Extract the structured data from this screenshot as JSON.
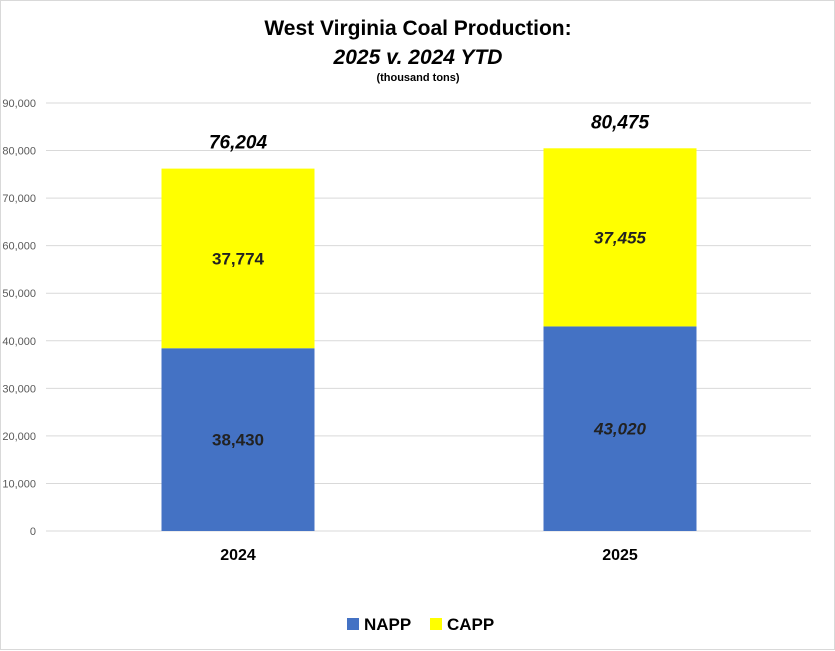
{
  "chart_data": {
    "type": "bar",
    "stacked": true,
    "title": "West Virginia Coal Production:",
    "title_line2": "2025 v. 2024 YTD",
    "subtitle": "(thousand tons)",
    "categories": [
      "2024",
      "2025"
    ],
    "series": [
      {
        "name": "NAPP",
        "values": [
          38430,
          43020
        ],
        "labels": [
          "38,430",
          "43,020"
        ],
        "color": "#4472C4",
        "label_italic": [
          false,
          true
        ]
      },
      {
        "name": "CAPP",
        "values": [
          37774,
          37455
        ],
        "labels": [
          "37,774",
          "37,455"
        ],
        "color": "#FFFF00",
        "label_italic": [
          false,
          true
        ]
      }
    ],
    "totals": [
      76204,
      80475
    ],
    "total_labels": [
      "76,204",
      "80,475"
    ],
    "ylim": [
      0,
      90000
    ],
    "yticks": [
      0,
      10000,
      20000,
      30000,
      40000,
      50000,
      60000,
      70000,
      80000,
      90000
    ],
    "ytick_labels": [
      "0",
      "10,000",
      "20,000",
      "30,000",
      "40,000",
      "50,000",
      "60,000",
      "70,000",
      "80,000",
      "90,000"
    ],
    "grid": true,
    "gridline_color": "#d9d9d9",
    "legend_position": "bottom"
  }
}
